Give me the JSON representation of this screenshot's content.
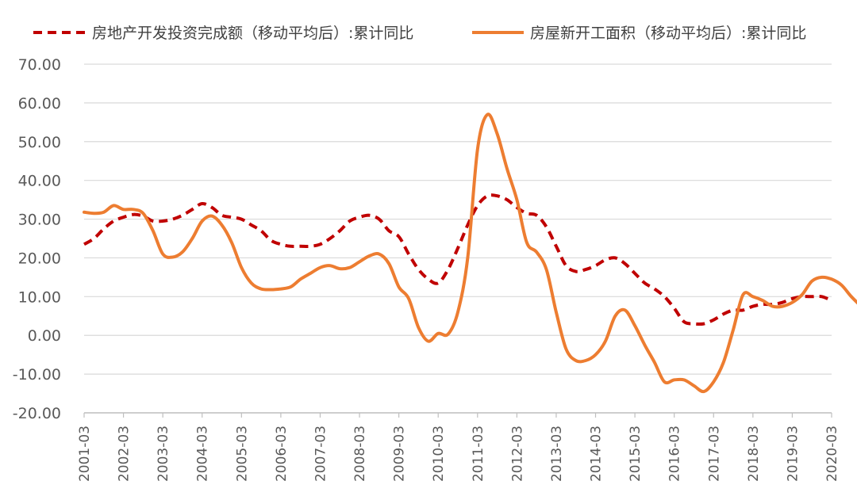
{
  "chart_data": {
    "type": "line",
    "x_tick_labels": [
      "2001-03",
      "2002-03",
      "2003-03",
      "2004-03",
      "2005-03",
      "2006-03",
      "2007-03",
      "2008-03",
      "2009-03",
      "2010-03",
      "2011-03",
      "2012-03",
      "2013-03",
      "2014-03",
      "2015-03",
      "2016-03",
      "2017-03",
      "2018-03",
      "2019-03",
      "2020-03"
    ],
    "y_tick_labels": [
      "70.00",
      "60.00",
      "50.00",
      "40.00",
      "30.00",
      "20.00",
      "10.00",
      "0.00",
      "-10.00",
      "-20.00"
    ],
    "ylim": [
      -20,
      70
    ],
    "xlim": [
      "2001-03",
      "2020-03"
    ],
    "grid": "horizontal",
    "legend_position": "top",
    "series": [
      {
        "name": "房地产开发投资完成额（移动平均后）:累计同比",
        "style": "dashed",
        "color": "#c00000",
        "points": [
          [
            "2001-03",
            23.5
          ],
          [
            "2001-06",
            25
          ],
          [
            "2001-09",
            27.5
          ],
          [
            "2001-12",
            29.5
          ],
          [
            "2002-03",
            30.5
          ],
          [
            "2002-06",
            31.2
          ],
          [
            "2002-09",
            30.8
          ],
          [
            "2002-12",
            29.5
          ],
          [
            "2003-03",
            29.5
          ],
          [
            "2003-06",
            30
          ],
          [
            "2003-09",
            31
          ],
          [
            "2003-12",
            32.5
          ],
          [
            "2004-03",
            34
          ],
          [
            "2004-06",
            33
          ],
          [
            "2004-09",
            31
          ],
          [
            "2004-12",
            30.5
          ],
          [
            "2005-03",
            30
          ],
          [
            "2005-06",
            28.5
          ],
          [
            "2005-09",
            27
          ],
          [
            "2005-12",
            24.5
          ],
          [
            "2006-03",
            23.5
          ],
          [
            "2006-06",
            23
          ],
          [
            "2006-09",
            23
          ],
          [
            "2006-12",
            23
          ],
          [
            "2007-03",
            23.5
          ],
          [
            "2007-06",
            25
          ],
          [
            "2007-09",
            27
          ],
          [
            "2007-12",
            29.5
          ],
          [
            "2008-03",
            30.5
          ],
          [
            "2008-06",
            31
          ],
          [
            "2008-09",
            30
          ],
          [
            "2008-12",
            27
          ],
          [
            "2009-03",
            25.5
          ],
          [
            "2009-06",
            21
          ],
          [
            "2009-09",
            17
          ],
          [
            "2009-12",
            14.5
          ],
          [
            "2010-03",
            13.5
          ],
          [
            "2010-06",
            17
          ],
          [
            "2010-09",
            22.5
          ],
          [
            "2010-12",
            28.5
          ],
          [
            "2011-03",
            33.5
          ],
          [
            "2011-06",
            36
          ],
          [
            "2011-09",
            36
          ],
          [
            "2011-12",
            35
          ],
          [
            "2012-03",
            33
          ],
          [
            "2012-06",
            31.5
          ],
          [
            "2012-09",
            31
          ],
          [
            "2012-12",
            28
          ],
          [
            "2013-03",
            23
          ],
          [
            "2013-06",
            18
          ],
          [
            "2013-09",
            16.5
          ],
          [
            "2013-12",
            17
          ],
          [
            "2014-03",
            18
          ],
          [
            "2014-06",
            19.5
          ],
          [
            "2014-09",
            20
          ],
          [
            "2014-12",
            18.5
          ],
          [
            "2015-03",
            16
          ],
          [
            "2015-06",
            13.5
          ],
          [
            "2015-09",
            12
          ],
          [
            "2015-12",
            10
          ],
          [
            "2016-03",
            7
          ],
          [
            "2016-06",
            3.5
          ],
          [
            "2016-09",
            3
          ],
          [
            "2016-12",
            3
          ],
          [
            "2017-03",
            4
          ],
          [
            "2017-06",
            5.5
          ],
          [
            "2017-09",
            6.5
          ],
          [
            "2017-12",
            6.5
          ],
          [
            "2018-03",
            7.5
          ],
          [
            "2018-06",
            8
          ],
          [
            "2018-09",
            8
          ],
          [
            "2018-12",
            8.5
          ],
          [
            "2019-03",
            9.5
          ],
          [
            "2019-06",
            10
          ],
          [
            "2019-09",
            10
          ],
          [
            "2019-12",
            10
          ],
          [
            "2020-03",
            9
          ]
        ]
      },
      {
        "name": "房屋新开工面积（移动平均后）:累计同比",
        "style": "solid",
        "color": "#ed7d31",
        "points": [
          [
            "2001-03",
            31.8
          ],
          [
            "2001-06",
            31.5
          ],
          [
            "2001-09",
            31.8
          ],
          [
            "2001-12",
            33.5
          ],
          [
            "2002-03",
            32.5
          ],
          [
            "2002-06",
            32.5
          ],
          [
            "2002-09",
            31.5
          ],
          [
            "2002-12",
            27
          ],
          [
            "2003-03",
            21
          ],
          [
            "2003-06",
            20.2
          ],
          [
            "2003-09",
            21.5
          ],
          [
            "2003-12",
            25
          ],
          [
            "2004-03",
            29.5
          ],
          [
            "2004-06",
            30.8
          ],
          [
            "2004-09",
            28.5
          ],
          [
            "2004-12",
            24
          ],
          [
            "2005-03",
            17.5
          ],
          [
            "2005-06",
            13.5
          ],
          [
            "2005-09",
            12
          ],
          [
            "2005-12",
            11.8
          ],
          [
            "2006-03",
            12
          ],
          [
            "2006-06",
            12.5
          ],
          [
            "2006-09",
            14.5
          ],
          [
            "2006-12",
            16
          ],
          [
            "2007-03",
            17.5
          ],
          [
            "2007-06",
            18
          ],
          [
            "2007-09",
            17.2
          ],
          [
            "2007-12",
            17.5
          ],
          [
            "2008-03",
            19
          ],
          [
            "2008-06",
            20.5
          ],
          [
            "2008-09",
            21
          ],
          [
            "2008-12",
            18.5
          ],
          [
            "2009-03",
            12.5
          ],
          [
            "2009-06",
            9.5
          ],
          [
            "2009-09",
            2
          ],
          [
            "2009-12",
            -1.5
          ],
          [
            "2010-03",
            0.5
          ],
          [
            "2010-06",
            0.3
          ],
          [
            "2010-09",
            6
          ],
          [
            "2010-12",
            20
          ],
          [
            "2011-03",
            48
          ],
          [
            "2011-06",
            57
          ],
          [
            "2011-09",
            52
          ],
          [
            "2011-12",
            43
          ],
          [
            "2012-03",
            35
          ],
          [
            "2012-06",
            24
          ],
          [
            "2012-09",
            21.5
          ],
          [
            "2012-12",
            17
          ],
          [
            "2013-03",
            6
          ],
          [
            "2013-06",
            -3.5
          ],
          [
            "2013-09",
            -6.5
          ],
          [
            "2013-12",
            -6.5
          ],
          [
            "2014-03",
            -5
          ],
          [
            "2014-06",
            -1.5
          ],
          [
            "2014-09",
            5
          ],
          [
            "2014-12",
            6.5
          ],
          [
            "2015-03",
            2.5
          ],
          [
            "2015-06",
            -2.5
          ],
          [
            "2015-09",
            -7
          ],
          [
            "2015-12",
            -12
          ],
          [
            "2016-03",
            -11.5
          ],
          [
            "2016-06",
            -11.5
          ],
          [
            "2016-09",
            -13
          ],
          [
            "2016-12",
            -14.5
          ],
          [
            "2017-03",
            -12
          ],
          [
            "2017-06",
            -7
          ],
          [
            "2017-09",
            1.5
          ],
          [
            "2017-12",
            10.5
          ],
          [
            "2018-03",
            10
          ],
          [
            "2018-06",
            9
          ],
          [
            "2018-09",
            7.5
          ],
          [
            "2018-12",
            7.5
          ],
          [
            "2019-03",
            8.5
          ],
          [
            "2019-06",
            10.5
          ],
          [
            "2019-09",
            14
          ],
          [
            "2019-12",
            15
          ],
          [
            "2020-03",
            14.5
          ],
          [
            "2020-06",
            13
          ],
          [
            "2020-09",
            10
          ],
          [
            "2020-12",
            7.5
          ]
        ]
      }
    ]
  }
}
